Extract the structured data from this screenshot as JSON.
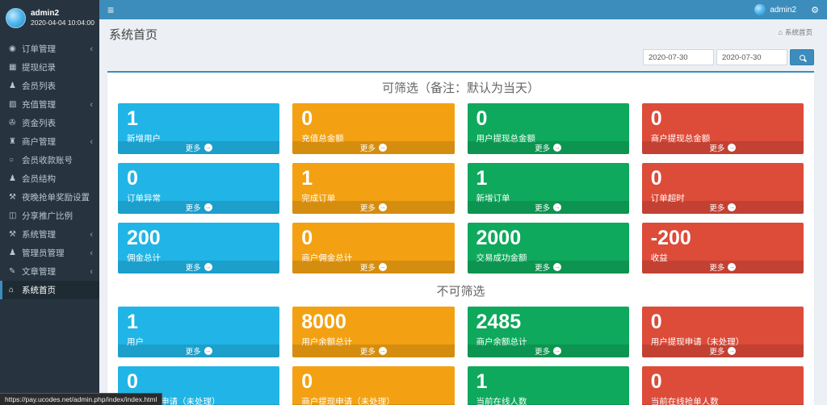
{
  "topbar": {
    "user": "admin2"
  },
  "sidebar": {
    "user": {
      "name": "admin2",
      "datetime": "2020-04-04 10:04:00"
    },
    "items": [
      {
        "name": "order-management",
        "label": "订单管理",
        "icon": "target",
        "has_submenu": true,
        "active": false
      },
      {
        "name": "withdraw-records",
        "label": "提现纪录",
        "icon": "table",
        "has_submenu": false,
        "active": false
      },
      {
        "name": "member-list",
        "label": "会员列表",
        "icon": "user",
        "has_submenu": false,
        "active": false
      },
      {
        "name": "recharge-management",
        "label": "充值管理",
        "icon": "image",
        "has_submenu": true,
        "active": false
      },
      {
        "name": "funds-list",
        "label": "资金列表",
        "icon": "paperclip",
        "has_submenu": false,
        "active": false
      },
      {
        "name": "merchant-management",
        "label": "商户管理",
        "icon": "bank",
        "has_submenu": true,
        "active": false
      },
      {
        "name": "member-payment-account",
        "label": "会员收款账号",
        "icon": "circle",
        "has_submenu": false,
        "active": false
      },
      {
        "name": "member-structure",
        "label": "会员结构",
        "icon": "users",
        "has_submenu": false,
        "active": false
      },
      {
        "name": "night-grab-reward-setting",
        "label": "夜晚抢单奖励设置",
        "icon": "wrench",
        "has_submenu": false,
        "active": false
      },
      {
        "name": "share-promotion-ratio",
        "label": "分享推广比例",
        "icon": "share",
        "has_submenu": false,
        "active": false
      },
      {
        "name": "system-management",
        "label": "系统管理",
        "icon": "wrench",
        "has_submenu": true,
        "active": false
      },
      {
        "name": "admin-management",
        "label": "管理员管理",
        "icon": "users",
        "has_submenu": true,
        "active": false
      },
      {
        "name": "article-management",
        "label": "文章管理",
        "icon": "edit",
        "has_submenu": true,
        "active": false
      },
      {
        "name": "system-home",
        "label": "系统首页",
        "icon": "home",
        "has_submenu": false,
        "active": true
      }
    ]
  },
  "content": {
    "page_title": "系统首页",
    "breadcrumb": "系统首页",
    "filters": {
      "date_from": "2020-07-30",
      "date_to": "2020-07-30"
    },
    "more_label": "更多",
    "sections": [
      {
        "title": "可筛选（备注：默认为当天）",
        "cards": [
          {
            "value": "1",
            "label": "新增用户",
            "color": "aqua"
          },
          {
            "value": "0",
            "label": "充值总金额",
            "color": "yellow"
          },
          {
            "value": "0",
            "label": "用户提现总金额",
            "color": "green"
          },
          {
            "value": "0",
            "label": "商户提现总金额",
            "color": "red"
          },
          {
            "value": "0",
            "label": "订单异常",
            "color": "aqua"
          },
          {
            "value": "1",
            "label": "完成订单",
            "color": "yellow"
          },
          {
            "value": "1",
            "label": "新增订单",
            "color": "green"
          },
          {
            "value": "0",
            "label": "订单超时",
            "color": "red"
          },
          {
            "value": "200",
            "label": "佣金总计",
            "color": "aqua"
          },
          {
            "value": "0",
            "label": "商户佣金总计",
            "color": "yellow"
          },
          {
            "value": "2000",
            "label": "交易成功金额",
            "color": "green"
          },
          {
            "value": "-200",
            "label": "收益",
            "color": "red"
          }
        ]
      },
      {
        "title": "不可筛选",
        "cards": [
          {
            "value": "1",
            "label": "用户",
            "color": "aqua"
          },
          {
            "value": "8000",
            "label": "用户余额总计",
            "color": "yellow"
          },
          {
            "value": "2485",
            "label": "商户余额总计",
            "color": "green"
          },
          {
            "value": "0",
            "label": "用户提现申请（未处理）",
            "color": "red"
          },
          {
            "value": "0",
            "label": "用户充值申请（未处理）",
            "color": "aqua"
          },
          {
            "value": "0",
            "label": "商户提现申请（未处理）",
            "color": "yellow"
          },
          {
            "value": "1",
            "label": "当前在线人数",
            "color": "green"
          },
          {
            "value": "0",
            "label": "当前在线抢单人数",
            "color": "red"
          }
        ]
      }
    ]
  },
  "statusbar": {
    "url": "https://pay.ucodes.net/admin.php/index/index.html"
  },
  "colors": {
    "aqua": "#20b5e6",
    "yellow": "#f3a112",
    "green": "#0ea95c",
    "red": "#dd4b39",
    "topbar": "#3c8dbc"
  }
}
